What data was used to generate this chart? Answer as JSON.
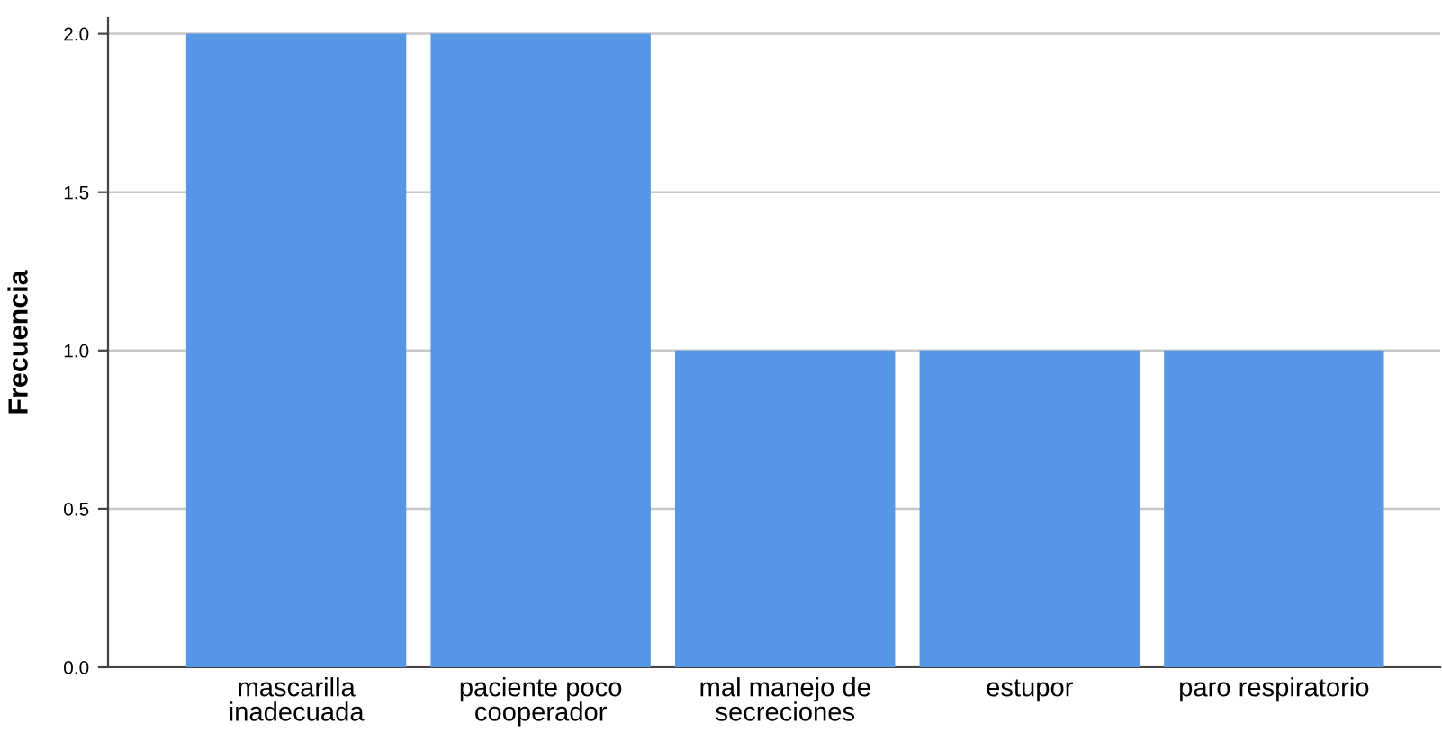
{
  "chart_data": {
    "type": "bar",
    "ylabel": "Frecuencia",
    "categories": [
      "mascarilla\ninadecuada",
      "paciente poco\ncooperador",
      "mal manejo de\nsecreciones",
      "estupor",
      "paro respiratorio"
    ],
    "values": [
      2,
      2,
      1,
      1,
      1
    ],
    "color": "#5596e5",
    "ylim": [
      0,
      2.05
    ],
    "yticks": [
      {
        "value": 0,
        "label": "0.0"
      },
      {
        "value": 0.5,
        "label": "0.5"
      },
      {
        "value": 1,
        "label": "1.0"
      },
      {
        "value": 1.5,
        "label": "1.5"
      },
      {
        "value": 2,
        "label": "2.0"
      }
    ],
    "grid": "y",
    "legend": false
  }
}
